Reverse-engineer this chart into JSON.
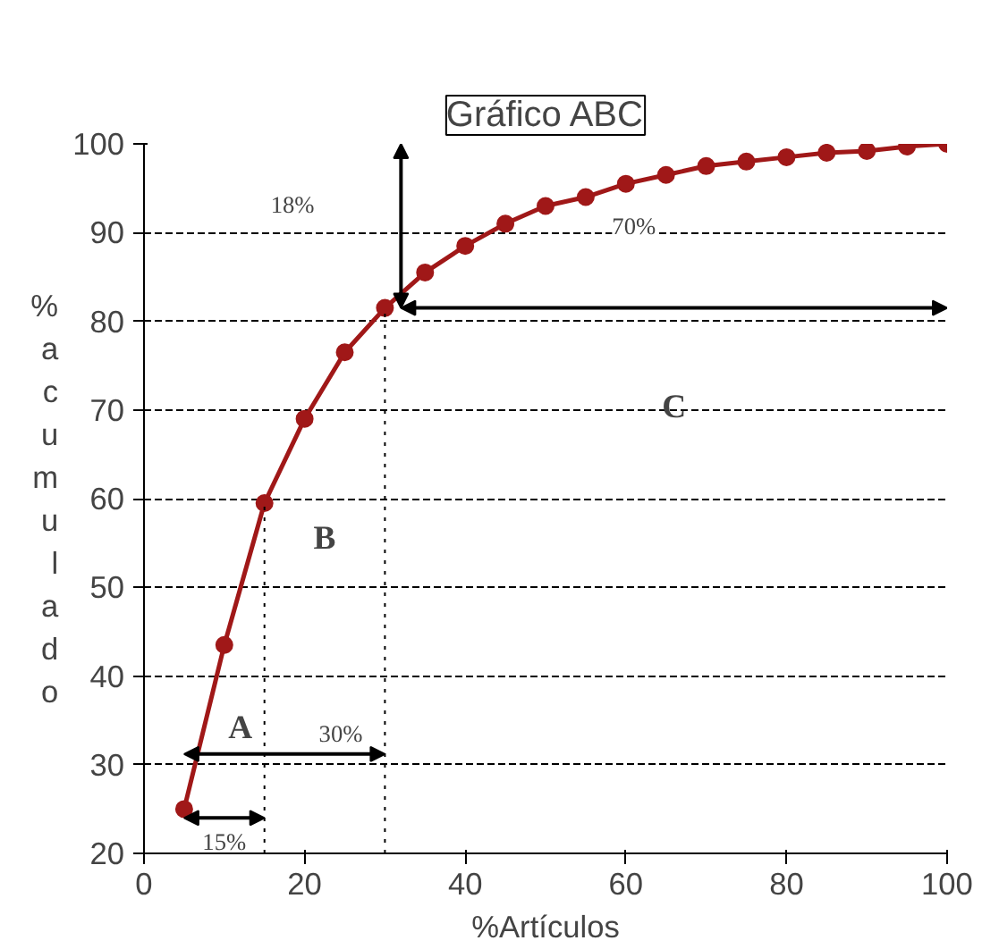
{
  "chart_data": {
    "type": "line",
    "title": "Gráfico ABC",
    "xlabel": "%Artículos",
    "ylabel": "%acumulado",
    "x": [
      5,
      10,
      15,
      20,
      25,
      30,
      35,
      40,
      45,
      50,
      55,
      60,
      65,
      70,
      75,
      80,
      85,
      90,
      95,
      100
    ],
    "series": [
      {
        "color": "#a01818",
        "values": [
          25,
          43.5,
          59.5,
          69,
          76.5,
          81.5,
          85.5,
          88.5,
          91,
          93,
          94,
          95.5,
          96.5,
          97.5,
          98,
          98.5,
          99,
          99.2,
          99.7,
          100
        ]
      }
    ],
    "xlim": [
      0,
      100
    ],
    "ylim": [
      20,
      100
    ],
    "xticks": [
      0,
      20,
      40,
      60,
      80,
      100
    ],
    "yticks": [
      20,
      30,
      40,
      50,
      60,
      70,
      80,
      90,
      100
    ],
    "grid": "y",
    "marker": "circle",
    "line_style": "solid",
    "ref_lines": [
      {
        "axis": "x",
        "value": 15,
        "line_style": "dotted"
      },
      {
        "axis": "x",
        "value": 30,
        "line_style": "dotted"
      }
    ],
    "annotations": [
      "15%",
      "30%",
      "70%",
      "18%",
      "A",
      "B",
      "C"
    ]
  }
}
